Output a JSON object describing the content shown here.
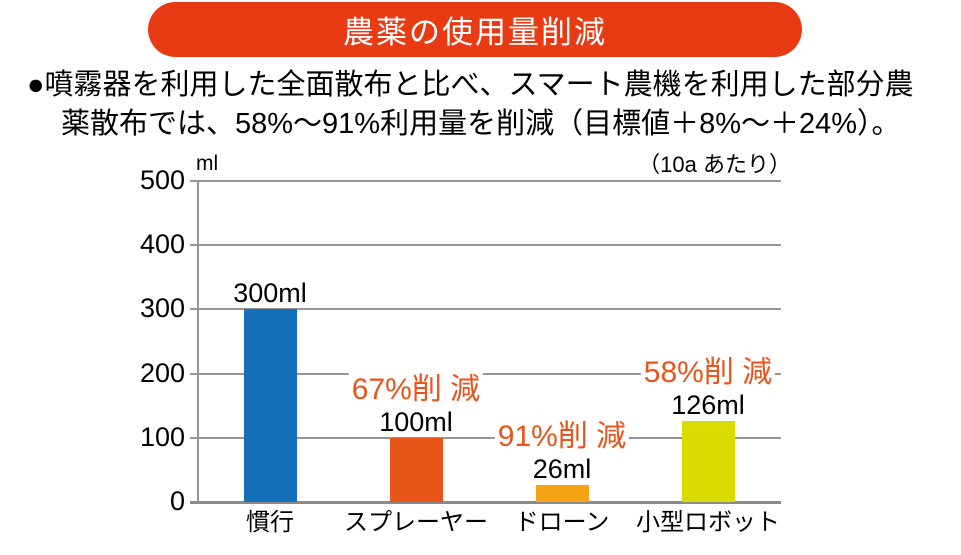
{
  "title_banner": {
    "text": "農薬の使用量削減",
    "bg_color": "#e83a13",
    "text_color": "#ffffff"
  },
  "description": {
    "line1": "●噴霧器を利用した全面散布と比べ、スマート農機を利用した部分農",
    "line2": "薬散布では、58%〜91%利用量を削減（目標値＋8%〜＋24%）。"
  },
  "chart_data": {
    "type": "bar",
    "title": "",
    "unit_label": "ml",
    "ylabel": "ml",
    "per_area_note": "（10a あたり）",
    "categories": [
      "慣行",
      "スプレーヤー",
      "ドローン",
      "小型ロボット"
    ],
    "values": [
      300,
      100,
      26,
      126
    ],
    "value_labels": [
      "300ml",
      "100ml",
      "26ml",
      "126ml"
    ],
    "reduction_labels": [
      null,
      "67%削 減",
      "91%削 減",
      "58%削 減"
    ],
    "bar_colors": [
      "#1470b8",
      "#e8541a",
      "#f5a315",
      "#d8dc00"
    ],
    "accent_text_color": "#e8541a",
    "grid_color": "#969696",
    "axis_color": "#8a8a8a",
    "ylim": [
      0,
      500
    ],
    "yticks": [
      0,
      100,
      200,
      300,
      400,
      500
    ],
    "grid": true,
    "legend_position": "none"
  }
}
